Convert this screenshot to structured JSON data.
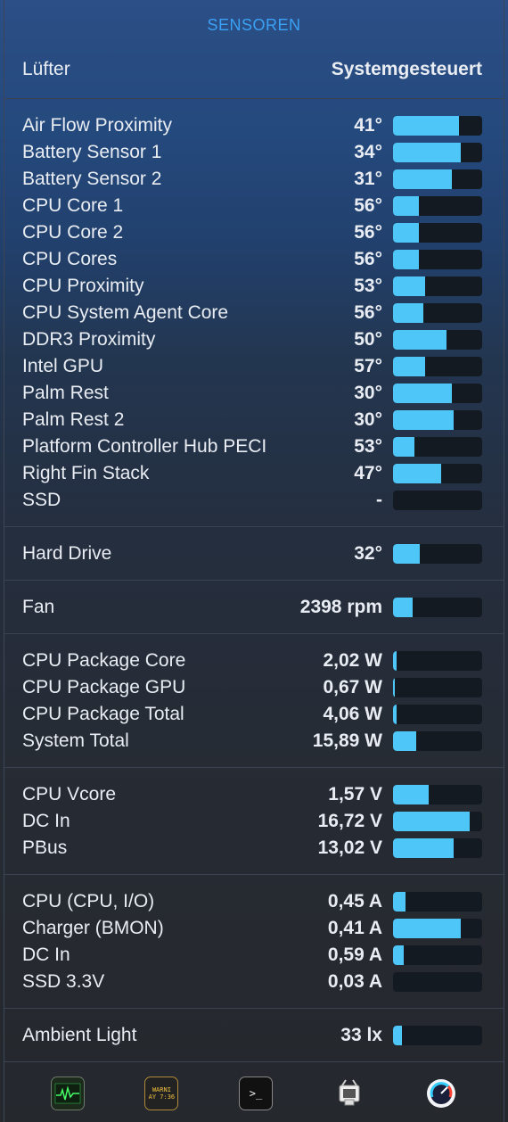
{
  "header": {
    "title": "SENSOREN"
  },
  "fan_mode": {
    "label": "Lüfter",
    "value": "Systemgesteuert"
  },
  "temperatures": [
    {
      "label": "Air Flow Proximity",
      "value": "41°",
      "level": 0.74
    },
    {
      "label": "Battery Sensor 1",
      "value": "34°",
      "level": 0.76
    },
    {
      "label": "Battery Sensor 2",
      "value": "31°",
      "level": 0.66
    },
    {
      "label": "CPU Core 1",
      "value": "56°",
      "level": 0.29
    },
    {
      "label": "CPU Core 2",
      "value": "56°",
      "level": 0.29
    },
    {
      "label": "CPU Cores",
      "value": "56°",
      "level": 0.29
    },
    {
      "label": "CPU Proximity",
      "value": "53°",
      "level": 0.36
    },
    {
      "label": "CPU System Agent Core",
      "value": "56°",
      "level": 0.34
    },
    {
      "label": "DDR3 Proximity",
      "value": "50°",
      "level": 0.6
    },
    {
      "label": "Intel GPU",
      "value": "57°",
      "level": 0.36
    },
    {
      "label": "Palm Rest",
      "value": "30°",
      "level": 0.66
    },
    {
      "label": "Palm Rest 2",
      "value": "30°",
      "level": 0.68
    },
    {
      "label": "Platform Controller Hub PECI",
      "value": "53°",
      "level": 0.24
    },
    {
      "label": "Right Fin Stack",
      "value": "47°",
      "level": 0.54
    },
    {
      "label": "SSD",
      "value": "-",
      "level": 0
    }
  ],
  "drives": [
    {
      "label": "Hard Drive",
      "value": "32°",
      "level": 0.3
    }
  ],
  "fans": [
    {
      "label": "Fan",
      "value": "2398 rpm",
      "level": 0.22
    }
  ],
  "power": [
    {
      "label": "CPU Package Core",
      "value": "2,02 W",
      "level": 0.04
    },
    {
      "label": "CPU Package GPU",
      "value": "0,67 W",
      "level": 0.015
    },
    {
      "label": "CPU Package Total",
      "value": "4,06 W",
      "level": 0.04
    },
    {
      "label": "System Total",
      "value": "15,89 W",
      "level": 0.26
    }
  ],
  "voltage": [
    {
      "label": "CPU Vcore",
      "value": "1,57 V",
      "level": 0.4
    },
    {
      "label": "DC In",
      "value": "16,72 V",
      "level": 0.86
    },
    {
      "label": "PBus",
      "value": "13,02 V",
      "level": 0.68
    }
  ],
  "current": [
    {
      "label": "CPU (CPU, I/O)",
      "value": "0,45 A",
      "level": 0.14
    },
    {
      "label": "Charger (BMON)",
      "value": "0,41 A",
      "level": 0.76
    },
    {
      "label": "DC In",
      "value": "0,59 A",
      "level": 0.12
    },
    {
      "label": "SSD 3.3V",
      "value": "0,03 A",
      "level": 0
    }
  ],
  "light": [
    {
      "label": "Ambient Light",
      "value": "33 lx",
      "level": 0.1
    }
  ],
  "dock": {
    "console_text": "WARNI\nAY 7:36",
    "terminal_text": ">_",
    "icons": [
      "activity-monitor-icon",
      "console-icon",
      "terminal-icon",
      "system-information-icon",
      "istat-icon"
    ]
  }
}
